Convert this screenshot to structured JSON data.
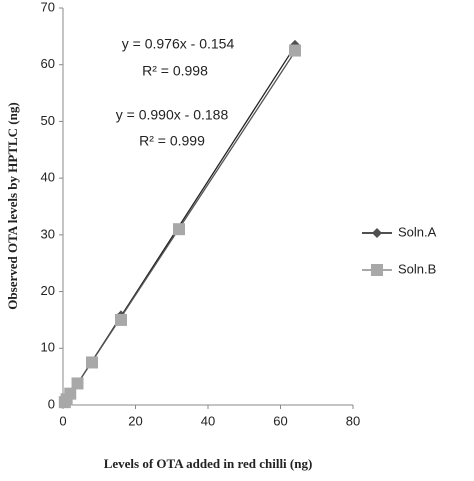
{
  "chart_data": {
    "type": "scatter",
    "x_label": "Levels of OTA added in red chilli (ng)",
    "y_label": "Observed OTA levels by HPTLC (ng)",
    "x": [
      0.5,
      1,
      2,
      4,
      8,
      16,
      32,
      64
    ],
    "series": [
      {
        "name": "Soln.A",
        "color": "#505050",
        "marker": "diamond",
        "values": [
          0.4,
          0.8,
          1.8,
          3.8,
          7.6,
          15.8,
          31,
          63.5
        ]
      },
      {
        "name": "Soln.B",
        "color": "#a8a8a8",
        "marker": "square",
        "values": [
          0.5,
          1,
          2,
          3.8,
          7.5,
          15,
          31,
          62.5
        ]
      }
    ],
    "trendline": true,
    "annotations": [
      "y = 0.976x - 0.154",
      "R² = 0.998",
      "y = 0.990x - 0.188",
      "R² = 0.999"
    ],
    "xlim": [
      0,
      80
    ],
    "xticks": [
      0,
      20,
      40,
      60,
      80
    ],
    "ylim": [
      0,
      70
    ],
    "yticks": [
      0,
      10,
      20,
      30,
      40,
      50,
      60,
      70
    ],
    "grid": false,
    "legend": "right"
  }
}
